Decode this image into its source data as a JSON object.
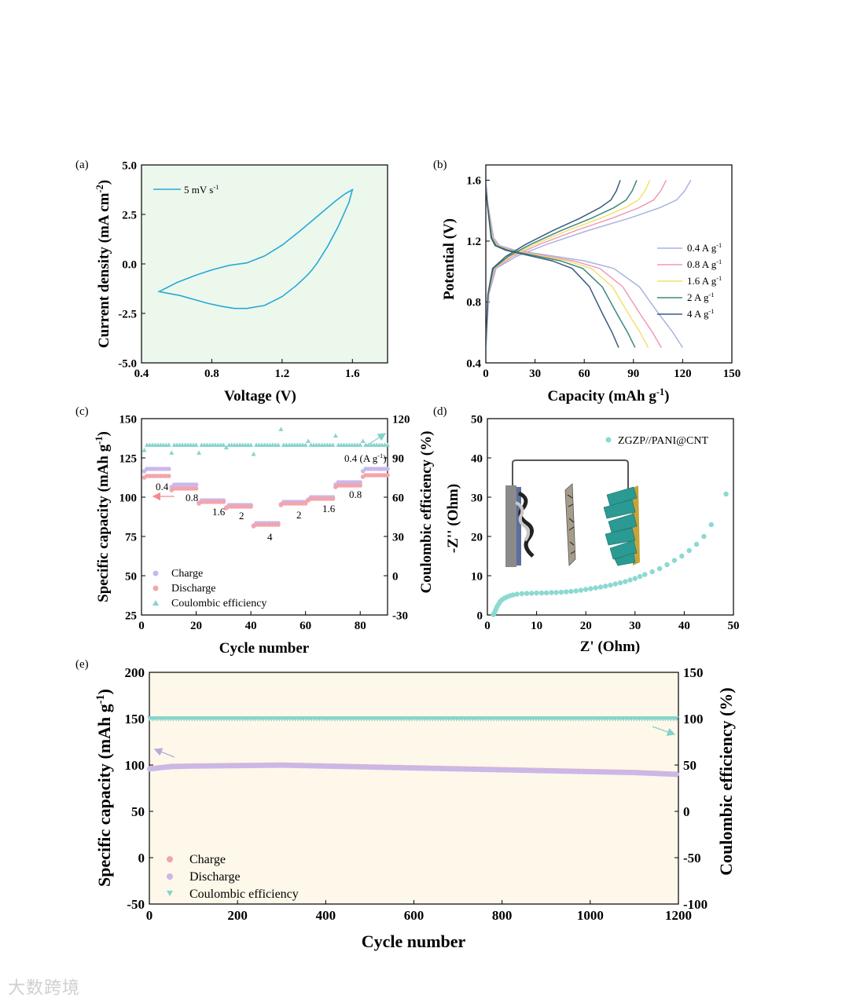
{
  "colors": {
    "cv": "#29a8d8",
    "panel_a_bg": "#ecf8ec",
    "panel_e_bg": "#fdf8e9",
    "rate_04": "#a9b4e0",
    "rate_08": "#f09ab8",
    "rate_16": "#f4e070",
    "rate_2": "#3d8a7a",
    "rate_4": "#3d5a80",
    "charge_c": "#c9b8ea",
    "discharge_c": "#f4a4ab",
    "ce": "#86d4cc",
    "nyquist": "#8cd9d2",
    "arrow_pink": "#f08a94",
    "arrow_lav": "#b9a7e2",
    "arrow_teal": "#84d2ca"
  },
  "panels": {
    "a": {
      "label": "(a)"
    },
    "b": {
      "label": "(b)"
    },
    "c": {
      "label": "(c)"
    },
    "d": {
      "label": "(d)"
    },
    "e": {
      "label": "(e)"
    }
  },
  "watermark": "大数跨境",
  "chart_data": [
    {
      "id": "a",
      "type": "line",
      "title": "",
      "xlabel": "Voltage (V)",
      "ylabel": "Current density (mA cm-2)",
      "xlim": [
        0.4,
        1.8
      ],
      "ylim": [
        -5.0,
        5.0
      ],
      "xticks": [
        "0.4",
        "0.8",
        "1.2",
        "1.6"
      ],
      "yticks": [
        "-5.0",
        "-2.5",
        "0.0",
        "2.5",
        "5.0"
      ],
      "legend": "5 mV s-1",
      "legend_position": "top-left",
      "series": [
        {
          "name": "5 mV s-1",
          "x": [
            0.5,
            0.6,
            0.7,
            0.8,
            0.9,
            1.0,
            1.1,
            1.2,
            1.3,
            1.4,
            1.5,
            1.56,
            1.6,
            1.58,
            1.52,
            1.46,
            1.4,
            1.37,
            1.34,
            1.28,
            1.2,
            1.1,
            1.0,
            0.93,
            0.86,
            0.78,
            0.7,
            0.62,
            0.56,
            0.5
          ],
          "y": [
            -1.4,
            -0.95,
            -0.6,
            -0.3,
            -0.07,
            0.05,
            0.4,
            0.95,
            1.65,
            2.4,
            3.15,
            3.55,
            3.75,
            3.1,
            1.9,
            0.9,
            0.05,
            -0.3,
            -0.6,
            -1.1,
            -1.65,
            -2.1,
            -2.25,
            -2.25,
            -2.15,
            -2.0,
            -1.8,
            -1.6,
            -1.5,
            -1.4
          ]
        }
      ]
    },
    {
      "id": "b",
      "type": "line",
      "title": "",
      "xlabel": "Capacity (mAh g-1)",
      "ylabel": "Potential (V)",
      "xlim": [
        0,
        150
      ],
      "ylim": [
        0.4,
        1.7
      ],
      "xticks": [
        "0",
        "30",
        "60",
        "90",
        "120",
        "150"
      ],
      "yticks": [
        "0.4",
        "0.8",
        "1.2",
        "1.6"
      ],
      "legend_position": "right",
      "series": [
        {
          "name": "0.4 A g-1",
          "charge_end": 125,
          "discharge_end": 120
        },
        {
          "name": "0.8 A g-1",
          "charge_end": 110,
          "discharge_end": 107
        },
        {
          "name": "1.6 A g-1",
          "charge_end": 100,
          "discharge_end": 99
        },
        {
          "name": "2 A g-1",
          "charge_end": 92,
          "discharge_end": 91
        },
        {
          "name": "4 A g-1",
          "charge_end": 82,
          "discharge_end": 81
        }
      ],
      "charge_shape": {
        "x_frac": [
          0.0,
          0.015,
          0.05,
          0.15,
          0.3,
          0.5,
          0.7,
          0.85,
          0.93,
          0.97,
          1.0
        ],
        "y": [
          0.5,
          0.85,
          1.02,
          1.1,
          1.18,
          1.27,
          1.35,
          1.42,
          1.47,
          1.53,
          1.6
        ]
      },
      "discharge_shape": {
        "x_frac": [
          0.0,
          0.01,
          0.04,
          0.07,
          0.15,
          0.3,
          0.5,
          0.65,
          0.78,
          0.88,
          0.95,
          1.0
        ],
        "y": [
          1.58,
          1.45,
          1.22,
          1.17,
          1.14,
          1.11,
          1.07,
          1.02,
          0.9,
          0.72,
          0.6,
          0.5
        ]
      }
    },
    {
      "id": "c",
      "type": "scatter",
      "title": "",
      "xlabel": "Cycle number",
      "ylabel": "Specific capacity (mAh g-1)",
      "ylabel_right": "Coulombic efficiency (%)",
      "xlim": [
        0,
        90
      ],
      "ylim": [
        25,
        150
      ],
      "ylim_right": [
        -30,
        120
      ],
      "xticks": [
        "0",
        "20",
        "40",
        "60",
        "80"
      ],
      "yticks": [
        "25",
        "50",
        "75",
        "100",
        "125",
        "150"
      ],
      "yticks_right": [
        "-30",
        "0",
        "30",
        "60",
        "90",
        "120"
      ],
      "legend": [
        "Charge",
        "Discharge",
        "Coulombic efficiency"
      ],
      "legend_position": "bottom-left",
      "rate_labels": [
        "0.4",
        "0.8",
        "1.6",
        "2",
        "4",
        "2",
        "1.6",
        "0.8",
        "0.4 (A g-1)"
      ],
      "segments": [
        {
          "start": 1,
          "end": 10,
          "charge": 118,
          "discharge": 113.5
        },
        {
          "start": 11,
          "end": 20,
          "charge": 108,
          "discharge": 105.5
        },
        {
          "start": 21,
          "end": 30,
          "charge": 98,
          "discharge": 97
        },
        {
          "start": 31,
          "end": 40,
          "charge": 95,
          "discharge": 94
        },
        {
          "start": 41,
          "end": 50,
          "charge": 83.5,
          "discharge": 82.5
        },
        {
          "start": 51,
          "end": 60,
          "charge": 97,
          "discharge": 96
        },
        {
          "start": 61,
          "end": 70,
          "charge": 100,
          "discharge": 99
        },
        {
          "start": 71,
          "end": 80,
          "charge": 109.5,
          "discharge": 107.5
        },
        {
          "start": 81,
          "end": 90,
          "charge": 118,
          "discharge": 114
        }
      ],
      "ce_base": 100,
      "ce_outliers": [
        [
          1,
          96
        ],
        [
          11,
          94
        ],
        [
          21,
          94
        ],
        [
          31,
          98
        ],
        [
          41,
          93
        ],
        [
          51,
          112
        ],
        [
          61,
          103
        ],
        [
          71,
          107
        ],
        [
          81,
          103
        ]
      ]
    },
    {
      "id": "d",
      "type": "scatter",
      "title": "",
      "xlabel": "Z' (Ohm)",
      "ylabel": "-Z'' (Ohm)",
      "xlim": [
        0,
        50
      ],
      "ylim": [
        0,
        50
      ],
      "xticks": [
        "0",
        "10",
        "20",
        "30",
        "40",
        "50"
      ],
      "yticks": [
        "0",
        "10",
        "20",
        "30",
        "40",
        "50"
      ],
      "legend": "ZGZP//PANI@CNT",
      "legend_position": "top-right",
      "points_x": [
        1.2,
        1.4,
        1.6,
        1.8,
        2.0,
        2.3,
        2.6,
        3.0,
        3.5,
        4.0,
        4.6,
        5.2,
        6.0,
        7.0,
        8.0,
        9.0,
        10.0,
        11.0,
        12.0,
        13.0,
        14.0,
        15.0,
        16.0,
        17.0,
        18.0,
        19.0,
        20.0,
        21.0,
        22.0,
        23.0,
        24.0,
        25.0,
        26.0,
        27.0,
        28.0,
        29.0,
        30.0,
        31.0,
        32.0,
        33.5,
        35.0,
        36.5,
        38.0,
        39.5,
        41.0,
        42.5,
        44.0,
        45.5,
        48.5
      ],
      "points_y": [
        0.1,
        0.5,
        1.0,
        1.6,
        2.2,
        2.8,
        3.4,
        3.9,
        4.3,
        4.6,
        4.9,
        5.1,
        5.3,
        5.45,
        5.5,
        5.55,
        5.6,
        5.6,
        5.65,
        5.7,
        5.75,
        5.8,
        5.9,
        6.0,
        6.15,
        6.3,
        6.5,
        6.7,
        6.9,
        7.1,
        7.35,
        7.6,
        7.9,
        8.2,
        8.5,
        8.9,
        9.3,
        9.8,
        10.3,
        11.0,
        11.8,
        12.8,
        13.9,
        15.0,
        16.4,
        18.0,
        20.0,
        23.0,
        30.8
      ]
    },
    {
      "id": "e",
      "type": "scatter",
      "title": "",
      "xlabel": "Cycle number",
      "ylabel": "Specific capacity (mAh g-1)",
      "ylabel_right": "Coulombic efficiency (%)",
      "xlim": [
        0,
        1200
      ],
      "ylim": [
        -50,
        200
      ],
      "ylim_right": [
        -100,
        150
      ],
      "xticks": [
        "0",
        "200",
        "400",
        "600",
        "800",
        "1000",
        "1200"
      ],
      "yticks": [
        "-50",
        "0",
        "50",
        "100",
        "150",
        "200"
      ],
      "yticks_right": [
        "-100",
        "-50",
        "0",
        "50",
        "100",
        "150"
      ],
      "legend": [
        "Charge",
        "Discharge",
        "Coulombic efficiency"
      ],
      "legend_position": "bottom-left",
      "capacity_x": [
        1,
        50,
        100,
        200,
        300,
        400,
        500,
        600,
        700,
        800,
        900,
        1000,
        1100,
        1200
      ],
      "capacity_y": [
        96,
        98.5,
        99,
        99.5,
        100,
        99,
        98,
        97,
        96,
        95,
        94,
        93,
        92,
        90
      ],
      "ce_value": 100
    }
  ]
}
